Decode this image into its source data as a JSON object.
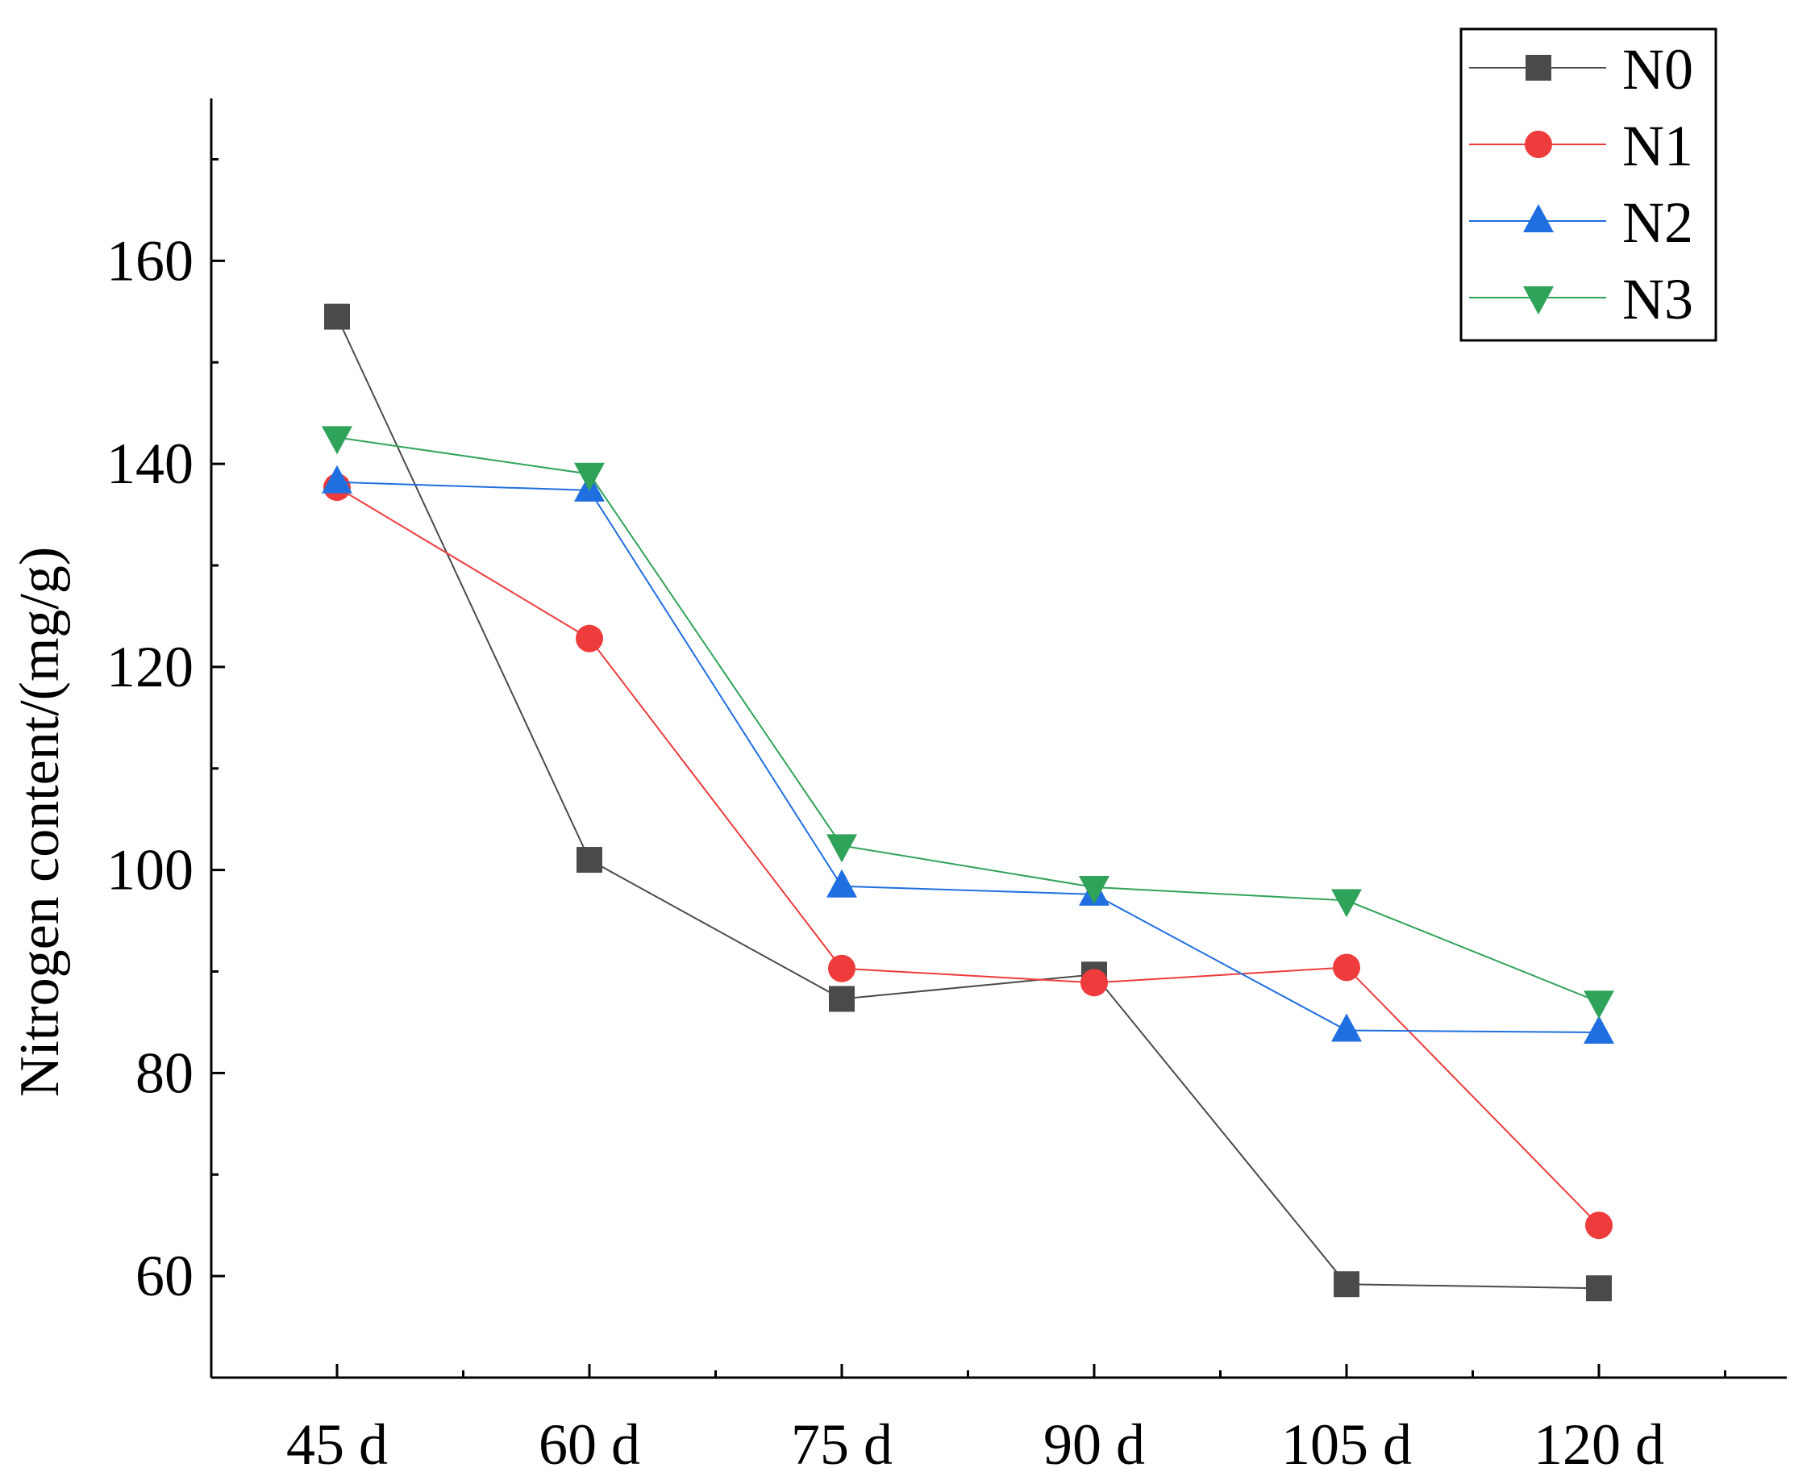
{
  "chart_data": {
    "type": "line",
    "title": "",
    "xlabel": "",
    "ylabel": "Nitrogen content/(mg/g)",
    "categories": [
      "45 d",
      "60 d",
      "75 d",
      "90 d",
      "105 d",
      "120 d"
    ],
    "ylim": [
      50,
      176
    ],
    "yticks": [
      60,
      80,
      100,
      120,
      140,
      160
    ],
    "grid": false,
    "legend_position": "top-right",
    "series": [
      {
        "name": "N0",
        "marker": "square",
        "color": "#4a4a4a",
        "values": [
          154.5,
          101.0,
          87.3,
          89.7,
          59.2,
          58.8
        ]
      },
      {
        "name": "N1",
        "marker": "circle",
        "color": "#ee3b3b",
        "values": [
          137.7,
          122.8,
          90.3,
          88.9,
          90.4,
          65.0
        ]
      },
      {
        "name": "N2",
        "marker": "triangle-up",
        "color": "#1f6fe0",
        "values": [
          138.2,
          137.4,
          98.4,
          97.6,
          84.2,
          84.0
        ]
      },
      {
        "name": "N3",
        "marker": "triangle-down",
        "color": "#30a35a",
        "values": [
          142.6,
          139.0,
          102.4,
          98.3,
          97.0,
          87.0
        ]
      }
    ]
  }
}
